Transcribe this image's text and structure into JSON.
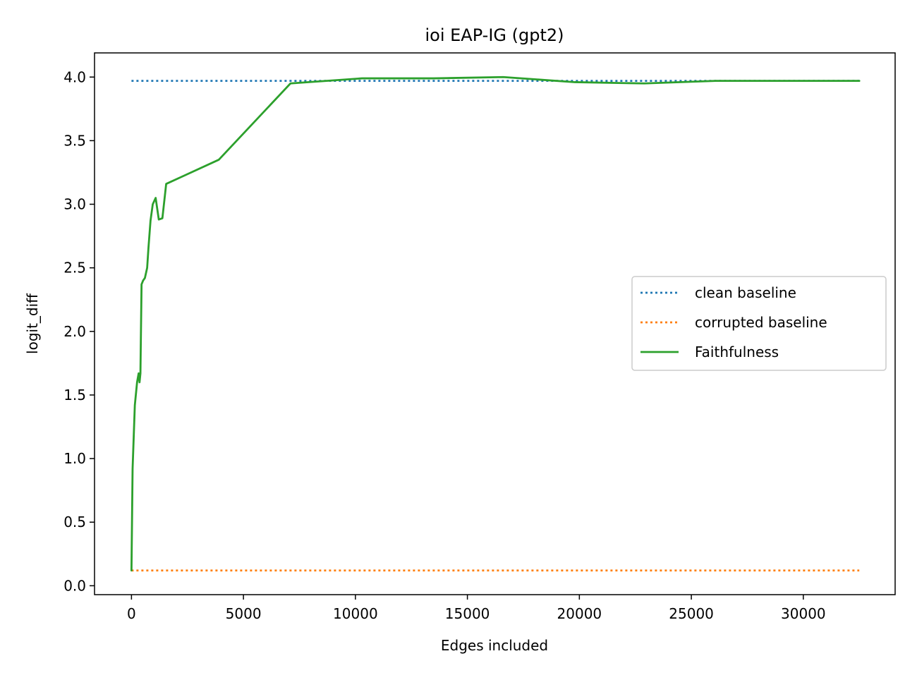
{
  "chart_data": {
    "type": "line",
    "title": "ioi EAP-IG (gpt2)",
    "xlabel": "Edges included",
    "ylabel": "logit_diff",
    "xlim": [
      -1650,
      34100
    ],
    "ylim": [
      -0.07,
      4.19
    ],
    "x_ticks": [
      0,
      5000,
      10000,
      15000,
      20000,
      25000,
      30000
    ],
    "y_ticks": [
      0.0,
      0.5,
      1.0,
      1.5,
      2.0,
      2.5,
      3.0,
      3.5,
      4.0
    ],
    "x_tick_labels": [
      "0",
      "5000",
      "10000",
      "15000",
      "20000",
      "25000",
      "30000"
    ],
    "y_tick_labels": [
      "0.0",
      "0.5",
      "1.0",
      "1.5",
      "2.0",
      "2.5",
      "3.0",
      "3.5",
      "4.0"
    ],
    "grid": false,
    "legend_position": "center-right",
    "series": [
      {
        "name": "clean baseline",
        "style": "dotted",
        "color": "#1f77b4",
        "x": [
          0,
          32500
        ],
        "y": [
          3.97,
          3.97
        ]
      },
      {
        "name": "corrupted baseline",
        "style": "dotted",
        "color": "#ff7f0e",
        "x": [
          0,
          32500
        ],
        "y": [
          0.12,
          0.12
        ]
      },
      {
        "name": "Faithfulness",
        "style": "solid",
        "color": "#2ca02c",
        "x": [
          0,
          50,
          150,
          250,
          320,
          360,
          400,
          450,
          520,
          600,
          700,
          760,
          850,
          950,
          1080,
          1220,
          1380,
          1550,
          3900,
          7100,
          10300,
          13500,
          16600,
          19800,
          22900,
          26100,
          32500
        ],
        "y": [
          0.12,
          0.92,
          1.42,
          1.6,
          1.67,
          1.6,
          1.67,
          2.37,
          2.4,
          2.42,
          2.5,
          2.66,
          2.87,
          3.0,
          3.05,
          2.88,
          2.89,
          3.16,
          3.35,
          3.95,
          3.99,
          3.99,
          4.0,
          3.96,
          3.95,
          3.97,
          3.97
        ]
      }
    ]
  }
}
